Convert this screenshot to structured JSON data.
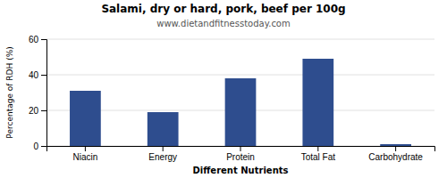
{
  "chart_data": {
    "type": "bar",
    "title": "Salami, dry or hard, pork, beef per 100g",
    "subtitle": "www.dietandfitnesstoday.com",
    "xlabel": "Different Nutrients",
    "ylabel": "Percentage of RDH (%)",
    "categories": [
      "Niacin",
      "Energy",
      "Protein",
      "Total Fat",
      "Carbohydrate"
    ],
    "values": [
      31,
      19,
      38,
      49,
      1
    ],
    "color": "#2e4d8e",
    "ylim": [
      0,
      60
    ],
    "yticks": [
      0,
      20,
      40,
      60
    ],
    "grid": true
  }
}
